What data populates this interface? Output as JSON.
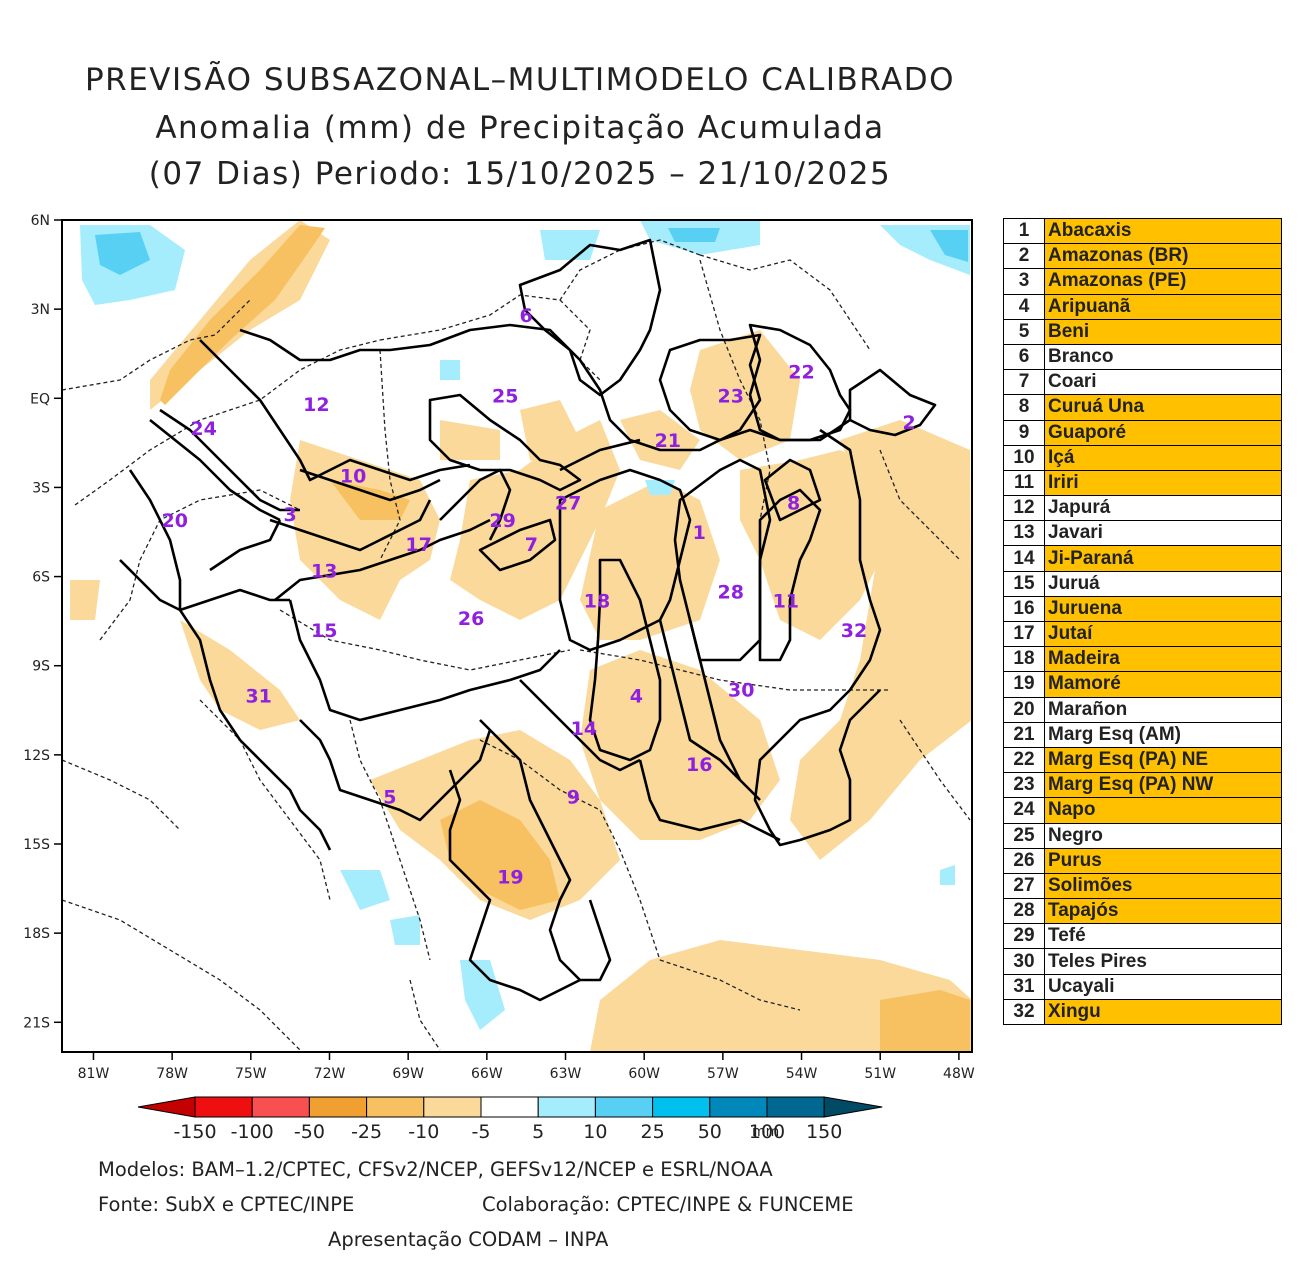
{
  "title": {
    "line1": "PREVISÃO SUBSAZONAL–MULTIMODELO CALIBRADO",
    "line2": "Anomalia (mm) de Precipitação Acumulada",
    "line3": "(07 Dias) Periodo: 15/10/2025 – 21/10/2025"
  },
  "map": {
    "lat_labels": [
      "6N",
      "3N",
      "EQ",
      "3S",
      "6S",
      "9S",
      "12S",
      "15S",
      "18S",
      "21S"
    ],
    "lon_labels": [
      "81W",
      "78W",
      "75W",
      "72W",
      "69W",
      "66W",
      "63W",
      "60W",
      "57W",
      "54W",
      "51W",
      "48W"
    ],
    "basin_labels": [
      {
        "id": "6",
        "lon": -64.5,
        "lat": 2.8
      },
      {
        "id": "22",
        "lon": -54.0,
        "lat": 0.9
      },
      {
        "id": "12",
        "lon": -72.5,
        "lat": -0.2
      },
      {
        "id": "25",
        "lon": -65.3,
        "lat": 0.1
      },
      {
        "id": "23",
        "lon": -56.7,
        "lat": 0.1
      },
      {
        "id": "24",
        "lon": -76.8,
        "lat": -1.0
      },
      {
        "id": "21",
        "lon": -59.1,
        "lat": -1.4
      },
      {
        "id": "2",
        "lon": -49.9,
        "lat": -0.8
      },
      {
        "id": "10",
        "lon": -71.1,
        "lat": -2.6
      },
      {
        "id": "27",
        "lon": -62.9,
        "lat": -3.5
      },
      {
        "id": "8",
        "lon": -54.3,
        "lat": -3.5
      },
      {
        "id": "20",
        "lon": -77.9,
        "lat": -4.1
      },
      {
        "id": "3",
        "lon": -73.5,
        "lat": -3.9
      },
      {
        "id": "29",
        "lon": -65.4,
        "lat": -4.1
      },
      {
        "id": "17",
        "lon": -68.6,
        "lat": -4.9
      },
      {
        "id": "7",
        "lon": -64.3,
        "lat": -4.9
      },
      {
        "id": "1",
        "lon": -57.9,
        "lat": -4.5
      },
      {
        "id": "13",
        "lon": -72.2,
        "lat": -5.8
      },
      {
        "id": "28",
        "lon": -56.7,
        "lat": -6.5
      },
      {
        "id": "11",
        "lon": -54.6,
        "lat": -6.8
      },
      {
        "id": "18",
        "lon": -61.8,
        "lat": -6.8
      },
      {
        "id": "15",
        "lon": -72.2,
        "lat": -7.8
      },
      {
        "id": "26",
        "lon": -66.6,
        "lat": -7.4
      },
      {
        "id": "32",
        "lon": -52.0,
        "lat": -7.8
      },
      {
        "id": "4",
        "lon": -60.3,
        "lat": -10.0
      },
      {
        "id": "30",
        "lon": -56.3,
        "lat": -9.8
      },
      {
        "id": "31",
        "lon": -74.7,
        "lat": -10.0
      },
      {
        "id": "14",
        "lon": -62.3,
        "lat": -11.1
      },
      {
        "id": "16",
        "lon": -57.9,
        "lat": -12.3
      },
      {
        "id": "5",
        "lon": -69.7,
        "lat": -13.4
      },
      {
        "id": "9",
        "lon": -62.7,
        "lat": -13.4
      },
      {
        "id": "19",
        "lon": -65.1,
        "lat": -16.1
      }
    ]
  },
  "colorbar": {
    "ticks": [
      "-150",
      "-100",
      "-50",
      "-25",
      "-10",
      "-5",
      "5",
      "10",
      "25",
      "50",
      "100",
      "150"
    ],
    "unit": "mm",
    "colors": [
      "#c40000",
      "#ee1010",
      "#f85050",
      "#f0a030",
      "#f7c060",
      "#fad99a",
      "#ffffff",
      "#a5ecfc",
      "#58d0f4",
      "#00c0f0",
      "#0088bb",
      "#006890",
      "#004a65"
    ]
  },
  "legend": [
    {
      "num": "1",
      "name": "Abacaxis",
      "highlight": true
    },
    {
      "num": "2",
      "name": "Amazonas (BR)",
      "highlight": true
    },
    {
      "num": "3",
      "name": "Amazonas (PE)",
      "highlight": true
    },
    {
      "num": "4",
      "name": "Aripuanã",
      "highlight": true
    },
    {
      "num": "5",
      "name": "Beni",
      "highlight": true
    },
    {
      "num": "6",
      "name": "Branco",
      "highlight": false
    },
    {
      "num": "7",
      "name": "Coari",
      "highlight": false
    },
    {
      "num": "8",
      "name": "Curuá Una",
      "highlight": true
    },
    {
      "num": "9",
      "name": "Guaporé",
      "highlight": true
    },
    {
      "num": "10",
      "name": "Içá",
      "highlight": true
    },
    {
      "num": "11",
      "name": "Iriri",
      "highlight": true
    },
    {
      "num": "12",
      "name": "Japurá",
      "highlight": false
    },
    {
      "num": "13",
      "name": "Javari",
      "highlight": false
    },
    {
      "num": "14",
      "name": "Ji-Paraná",
      "highlight": true
    },
    {
      "num": "15",
      "name": "Juruá",
      "highlight": false
    },
    {
      "num": "16",
      "name": "Juruena",
      "highlight": true
    },
    {
      "num": "17",
      "name": "Jutaí",
      "highlight": true
    },
    {
      "num": "18",
      "name": "Madeira",
      "highlight": true
    },
    {
      "num": "19",
      "name": "Mamoré",
      "highlight": true
    },
    {
      "num": "20",
      "name": "Marañon",
      "highlight": false
    },
    {
      "num": "21",
      "name": "Marg Esq (AM)",
      "highlight": false
    },
    {
      "num": "22",
      "name": "Marg Esq (PA) NE",
      "highlight": true
    },
    {
      "num": "23",
      "name": "Marg Esq (PA) NW",
      "highlight": true
    },
    {
      "num": "24",
      "name": "Napo",
      "highlight": true
    },
    {
      "num": "25",
      "name": "Negro",
      "highlight": false
    },
    {
      "num": "26",
      "name": "Purus",
      "highlight": true
    },
    {
      "num": "27",
      "name": "Solimões",
      "highlight": true
    },
    {
      "num": "28",
      "name": "Tapajós",
      "highlight": true
    },
    {
      "num": "29",
      "name": "Tefé",
      "highlight": false
    },
    {
      "num": "30",
      "name": "Teles Pires",
      "highlight": false
    },
    {
      "num": "31",
      "name": "Ucayali",
      "highlight": false
    },
    {
      "num": "32",
      "name": "Xingu",
      "highlight": true
    }
  ],
  "footer": {
    "models": "Modelos: BAM–1.2/CPTEC, CFSv2/NCEP, GEFSv12/NCEP e ESRL/NOAA",
    "source": "Fonte: SubX e CPTEC/INPE",
    "collab": "Colaboração: CPTEC/INPE & FUNCEME",
    "presentation": "Apresentação CODAM – INPA"
  },
  "colors": {
    "highlight": "#ffc000",
    "label": "#9020e0",
    "light_orange": "#fad99a",
    "mid_orange": "#f7c060",
    "dark_orange": "#f0a030",
    "light_blue": "#a5ecfc",
    "mid_blue": "#58d0f4"
  }
}
